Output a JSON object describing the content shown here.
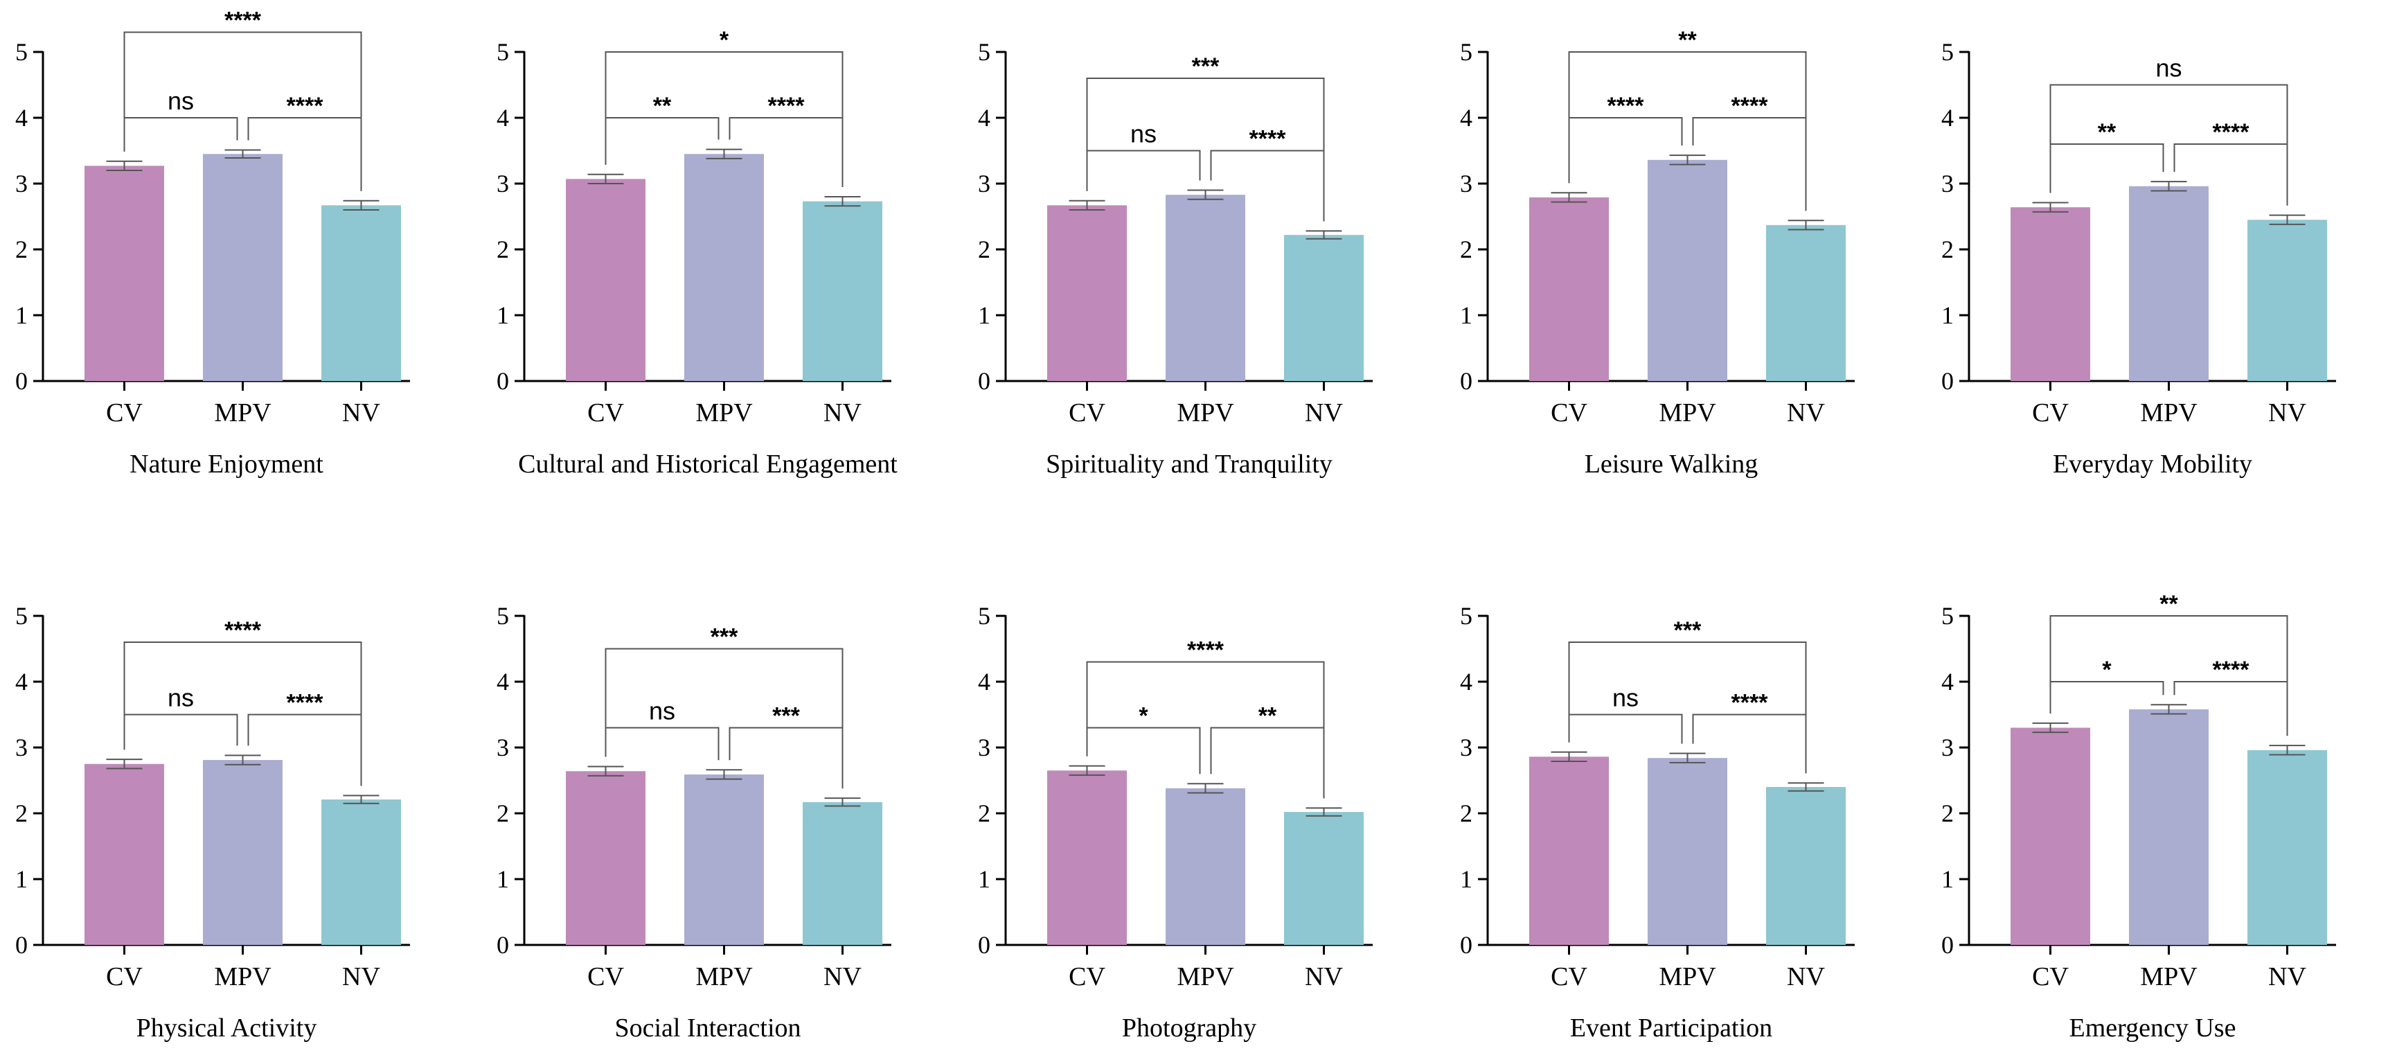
{
  "chart_data": [
    {
      "type": "bar",
      "title": "Nature Enjoyment",
      "categories": [
        "CV",
        "MPV",
        "NV"
      ],
      "values": [
        3.27,
        3.45,
        2.67
      ],
      "errors": [
        0.07,
        0.06,
        0.07
      ],
      "ylim": [
        0,
        5
      ],
      "yticks": [
        "0",
        "1",
        "2",
        "3",
        "4",
        "5"
      ],
      "colors": [
        "#bf8ab9",
        "#aaadd0",
        "#8ec7d1"
      ],
      "annotations": [
        {
          "from": 0,
          "to": 1,
          "label": "ns",
          "y": 4.0
        },
        {
          "from": 1,
          "to": 2,
          "label": "****",
          "y": 4.0
        },
        {
          "from": 0,
          "to": 2,
          "label": "****",
          "y": 5.3
        }
      ]
    },
    {
      "type": "bar",
      "title": "Cultural and Historical Engagement",
      "categories": [
        "CV",
        "MPV",
        "NV"
      ],
      "values": [
        3.07,
        3.45,
        2.73
      ],
      "errors": [
        0.07,
        0.07,
        0.07
      ],
      "ylim": [
        0,
        5
      ],
      "yticks": [
        "0",
        "1",
        "2",
        "3",
        "4",
        "5"
      ],
      "colors": [
        "#bf8ab9",
        "#aaadd0",
        "#8ec7d1"
      ],
      "annotations": [
        {
          "from": 0,
          "to": 1,
          "label": "**",
          "y": 4.0
        },
        {
          "from": 1,
          "to": 2,
          "label": "****",
          "y": 4.0
        },
        {
          "from": 0,
          "to": 2,
          "label": "*",
          "y": 5.0
        }
      ]
    },
    {
      "type": "bar",
      "title": "Spirituality and Tranquility",
      "categories": [
        "CV",
        "MPV",
        "NV"
      ],
      "values": [
        2.67,
        2.83,
        2.22
      ],
      "errors": [
        0.07,
        0.07,
        0.06
      ],
      "ylim": [
        0,
        5
      ],
      "yticks": [
        "0",
        "1",
        "2",
        "3",
        "4",
        "5"
      ],
      "colors": [
        "#bf8ab9",
        "#aaadd0",
        "#8ec7d1"
      ],
      "annotations": [
        {
          "from": 0,
          "to": 1,
          "label": "ns",
          "y": 3.5
        },
        {
          "from": 1,
          "to": 2,
          "label": "****",
          "y": 3.5
        },
        {
          "from": 0,
          "to": 2,
          "label": "***",
          "y": 4.6
        }
      ]
    },
    {
      "type": "bar",
      "title": "Leisure Walking",
      "categories": [
        "CV",
        "MPV",
        "NV"
      ],
      "values": [
        2.79,
        3.36,
        2.37
      ],
      "errors": [
        0.07,
        0.07,
        0.07
      ],
      "ylim": [
        0,
        5
      ],
      "yticks": [
        "0",
        "1",
        "2",
        "3",
        "4",
        "5"
      ],
      "colors": [
        "#bf8ab9",
        "#aaadd0",
        "#8ec7d1"
      ],
      "annotations": [
        {
          "from": 0,
          "to": 1,
          "label": "****",
          "y": 4.0
        },
        {
          "from": 1,
          "to": 2,
          "label": "****",
          "y": 4.0
        },
        {
          "from": 0,
          "to": 2,
          "label": "**",
          "y": 5.0
        }
      ]
    },
    {
      "type": "bar",
      "title": "Everyday Mobility",
      "categories": [
        "CV",
        "MPV",
        "NV"
      ],
      "values": [
        2.64,
        2.96,
        2.45
      ],
      "errors": [
        0.07,
        0.07,
        0.07
      ],
      "ylim": [
        0,
        5
      ],
      "yticks": [
        "0",
        "1",
        "2",
        "3",
        "4",
        "5"
      ],
      "colors": [
        "#bf8ab9",
        "#aaadd0",
        "#8ec7d1"
      ],
      "annotations": [
        {
          "from": 0,
          "to": 1,
          "label": "**",
          "y": 3.6
        },
        {
          "from": 1,
          "to": 2,
          "label": "****",
          "y": 3.6
        },
        {
          "from": 0,
          "to": 2,
          "label": "ns",
          "y": 4.5
        }
      ]
    },
    {
      "type": "bar",
      "title": "Physical Activity",
      "categories": [
        "CV",
        "MPV",
        "NV"
      ],
      "values": [
        2.75,
        2.81,
        2.21
      ],
      "errors": [
        0.07,
        0.07,
        0.06
      ],
      "ylim": [
        0,
        5
      ],
      "yticks": [
        "0",
        "1",
        "2",
        "3",
        "4",
        "5"
      ],
      "colors": [
        "#bf8ab9",
        "#aaadd0",
        "#8ec7d1"
      ],
      "annotations": [
        {
          "from": 0,
          "to": 1,
          "label": "ns",
          "y": 3.5
        },
        {
          "from": 1,
          "to": 2,
          "label": "****",
          "y": 3.5
        },
        {
          "from": 0,
          "to": 2,
          "label": "****",
          "y": 4.6
        }
      ]
    },
    {
      "type": "bar",
      "title": "Social Interaction",
      "categories": [
        "CV",
        "MPV",
        "NV"
      ],
      "values": [
        2.64,
        2.59,
        2.17
      ],
      "errors": [
        0.07,
        0.07,
        0.06
      ],
      "ylim": [
        0,
        5
      ],
      "yticks": [
        "0",
        "1",
        "2",
        "3",
        "4",
        "5"
      ],
      "colors": [
        "#bf8ab9",
        "#aaadd0",
        "#8ec7d1"
      ],
      "annotations": [
        {
          "from": 0,
          "to": 1,
          "label": "ns",
          "y": 3.3
        },
        {
          "from": 1,
          "to": 2,
          "label": "***",
          "y": 3.3
        },
        {
          "from": 0,
          "to": 2,
          "label": "***",
          "y": 4.5
        }
      ]
    },
    {
      "type": "bar",
      "title": "Photography",
      "categories": [
        "CV",
        "MPV",
        "NV"
      ],
      "values": [
        2.65,
        2.38,
        2.02
      ],
      "errors": [
        0.07,
        0.07,
        0.06
      ],
      "ylim": [
        0,
        5
      ],
      "yticks": [
        "0",
        "1",
        "2",
        "3",
        "4",
        "5"
      ],
      "colors": [
        "#bf8ab9",
        "#aaadd0",
        "#8ec7d1"
      ],
      "annotations": [
        {
          "from": 0,
          "to": 1,
          "label": "*",
          "y": 3.3
        },
        {
          "from": 1,
          "to": 2,
          "label": "**",
          "y": 3.3
        },
        {
          "from": 0,
          "to": 2,
          "label": "****",
          "y": 4.3
        }
      ]
    },
    {
      "type": "bar",
      "title": "Event Participation",
      "categories": [
        "CV",
        "MPV",
        "NV"
      ],
      "values": [
        2.86,
        2.84,
        2.4
      ],
      "errors": [
        0.07,
        0.07,
        0.06
      ],
      "ylim": [
        0,
        5
      ],
      "yticks": [
        "0",
        "1",
        "2",
        "3",
        "4",
        "5"
      ],
      "colors": [
        "#bf8ab9",
        "#aaadd0",
        "#8ec7d1"
      ],
      "annotations": [
        {
          "from": 0,
          "to": 1,
          "label": "ns",
          "y": 3.5
        },
        {
          "from": 1,
          "to": 2,
          "label": "****",
          "y": 3.5
        },
        {
          "from": 0,
          "to": 2,
          "label": "***",
          "y": 4.6
        }
      ]
    },
    {
      "type": "bar",
      "title": "Emergency Use",
      "categories": [
        "CV",
        "MPV",
        "NV"
      ],
      "values": [
        3.3,
        3.58,
        2.96
      ],
      "errors": [
        0.07,
        0.07,
        0.07
      ],
      "ylim": [
        0,
        5
      ],
      "yticks": [
        "0",
        "1",
        "2",
        "3",
        "4",
        "5"
      ],
      "colors": [
        "#bf8ab9",
        "#aaadd0",
        "#8ec7d1"
      ],
      "annotations": [
        {
          "from": 0,
          "to": 1,
          "label": "*",
          "y": 4.0
        },
        {
          "from": 1,
          "to": 2,
          "label": "****",
          "y": 4.0
        },
        {
          "from": 0,
          "to": 2,
          "label": "**",
          "y": 5.0
        }
      ]
    }
  ]
}
